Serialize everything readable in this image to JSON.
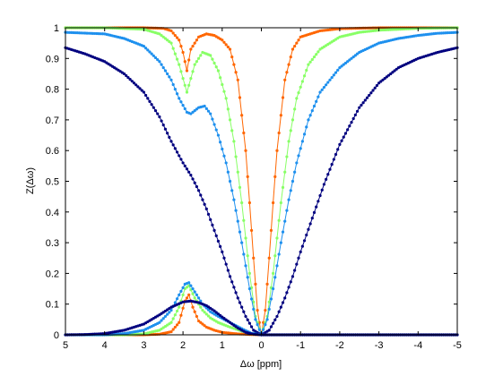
{
  "chart_data": {
    "type": "line",
    "xlabel": "Δω [ppm]",
    "ylabel": "Z(Δω)",
    "xlim": [
      5,
      -5
    ],
    "ylim": [
      0,
      1
    ],
    "x_reversed": true,
    "xticks": [
      5,
      4,
      3,
      2,
      1,
      0,
      -1,
      -2,
      -3,
      -4,
      -5
    ],
    "xtick_labels": [
      "5",
      "4",
      "3",
      "2",
      "1",
      "0",
      "-1",
      "-2",
      "-3",
      "-4",
      "-5"
    ],
    "yticks": [
      0,
      0.1,
      0.2,
      0.3,
      0.4,
      0.5,
      0.6,
      0.7,
      0.8,
      0.9,
      1
    ],
    "ytick_labels": [
      "0",
      "0.1",
      "0.2",
      "0.3",
      "0.4",
      "0.5",
      "0.6",
      "0.7",
      "0.8",
      "0.9",
      "1"
    ],
    "grid": false,
    "marker": "dot",
    "series": [
      {
        "color": "#ff6600",
        "kind": "z_spectrum",
        "values": [
          [
            5,
            1
          ],
          [
            4,
            1
          ],
          [
            3,
            1
          ],
          [
            2.5,
            0.998
          ],
          [
            2.3,
            0.99
          ],
          [
            2.1,
            0.96
          ],
          [
            2,
            0.92
          ],
          [
            1.9,
            0.86
          ],
          [
            1.8,
            0.93
          ],
          [
            1.6,
            0.97
          ],
          [
            1.4,
            0.98
          ],
          [
            1.2,
            0.975
          ],
          [
            1,
            0.96
          ],
          [
            0.8,
            0.93
          ],
          [
            0.6,
            0.83
          ],
          [
            0.4,
            0.6
          ],
          [
            0.3,
            0.43
          ],
          [
            0.2,
            0.25
          ],
          [
            0.1,
            0.08
          ],
          [
            0,
            0
          ],
          [
            -0.1,
            0.08
          ],
          [
            -0.2,
            0.25
          ],
          [
            -0.3,
            0.43
          ],
          [
            -0.4,
            0.6
          ],
          [
            -0.6,
            0.83
          ],
          [
            -0.8,
            0.93
          ],
          [
            -1,
            0.97
          ],
          [
            -1.5,
            0.99
          ],
          [
            -2,
            0.997
          ],
          [
            -3,
            1
          ],
          [
            -5,
            1
          ]
        ]
      },
      {
        "color": "#88ff66",
        "kind": "z_spectrum",
        "values": [
          [
            5,
            1
          ],
          [
            4,
            1
          ],
          [
            3,
            0.995
          ],
          [
            2.6,
            0.98
          ],
          [
            2.3,
            0.95
          ],
          [
            2.1,
            0.88
          ],
          [
            1.9,
            0.79
          ],
          [
            1.7,
            0.88
          ],
          [
            1.5,
            0.92
          ],
          [
            1.3,
            0.91
          ],
          [
            1.1,
            0.86
          ],
          [
            0.9,
            0.77
          ],
          [
            0.7,
            0.63
          ],
          [
            0.5,
            0.43
          ],
          [
            0.3,
            0.2
          ],
          [
            0.15,
            0.06
          ],
          [
            0,
            0
          ],
          [
            -0.15,
            0.06
          ],
          [
            -0.3,
            0.2
          ],
          [
            -0.5,
            0.43
          ],
          [
            -0.7,
            0.63
          ],
          [
            -0.9,
            0.77
          ],
          [
            -1.2,
            0.88
          ],
          [
            -1.5,
            0.93
          ],
          [
            -2,
            0.97
          ],
          [
            -2.5,
            0.985
          ],
          [
            -3,
            0.992
          ],
          [
            -4,
            0.998
          ],
          [
            -5,
            1
          ]
        ]
      },
      {
        "color": "#1e90ee",
        "kind": "z_spectrum",
        "values": [
          [
            5,
            0.985
          ],
          [
            4,
            0.98
          ],
          [
            3.5,
            0.965
          ],
          [
            3,
            0.94
          ],
          [
            2.6,
            0.89
          ],
          [
            2.3,
            0.83
          ],
          [
            2.1,
            0.77
          ],
          [
            1.9,
            0.725
          ],
          [
            1.8,
            0.72
          ],
          [
            1.6,
            0.74
          ],
          [
            1.45,
            0.745
          ],
          [
            1.3,
            0.72
          ],
          [
            1.1,
            0.65
          ],
          [
            0.9,
            0.56
          ],
          [
            0.7,
            0.44
          ],
          [
            0.5,
            0.3
          ],
          [
            0.3,
            0.15
          ],
          [
            0.15,
            0.05
          ],
          [
            0,
            0
          ],
          [
            -0.15,
            0.05
          ],
          [
            -0.3,
            0.15
          ],
          [
            -0.5,
            0.3
          ],
          [
            -0.7,
            0.44
          ],
          [
            -0.9,
            0.56
          ],
          [
            -1.2,
            0.7
          ],
          [
            -1.5,
            0.79
          ],
          [
            -2,
            0.87
          ],
          [
            -2.5,
            0.92
          ],
          [
            -3,
            0.95
          ],
          [
            -3.5,
            0.965
          ],
          [
            -4,
            0.975
          ],
          [
            -4.5,
            0.982
          ],
          [
            -5,
            0.985
          ]
        ]
      },
      {
        "color": "#00007f",
        "kind": "z_spectrum",
        "values": [
          [
            5,
            0.935
          ],
          [
            4.5,
            0.915
          ],
          [
            4,
            0.89
          ],
          [
            3.5,
            0.85
          ],
          [
            3,
            0.79
          ],
          [
            2.6,
            0.71
          ],
          [
            2.3,
            0.63
          ],
          [
            2,
            0.56
          ],
          [
            1.8,
            0.52
          ],
          [
            1.6,
            0.47
          ],
          [
            1.4,
            0.41
          ],
          [
            1.2,
            0.34
          ],
          [
            1,
            0.27
          ],
          [
            0.8,
            0.19
          ],
          [
            0.6,
            0.12
          ],
          [
            0.4,
            0.06
          ],
          [
            0.2,
            0.015
          ],
          [
            0,
            0
          ],
          [
            -0.2,
            0.015
          ],
          [
            -0.4,
            0.06
          ],
          [
            -0.6,
            0.12
          ],
          [
            -0.8,
            0.19
          ],
          [
            -1,
            0.27
          ],
          [
            -1.3,
            0.38
          ],
          [
            -1.6,
            0.49
          ],
          [
            -2,
            0.62
          ],
          [
            -2.5,
            0.74
          ],
          [
            -3,
            0.82
          ],
          [
            -3.5,
            0.87
          ],
          [
            -4,
            0.9
          ],
          [
            -4.5,
            0.92
          ],
          [
            -5,
            0.935
          ]
        ]
      },
      {
        "color": "#ff6600",
        "kind": "asymmetry",
        "values": [
          [
            5,
            0
          ],
          [
            3,
            0
          ],
          [
            2.6,
            0.002
          ],
          [
            2.3,
            0.01
          ],
          [
            2.1,
            0.04
          ],
          [
            1.95,
            0.11
          ],
          [
            1.85,
            0.13
          ],
          [
            1.75,
            0.09
          ],
          [
            1.6,
            0.045
          ],
          [
            1.4,
            0.025
          ],
          [
            1.2,
            0.015
          ],
          [
            1,
            0.008
          ],
          [
            0.6,
            0.003
          ],
          [
            0.3,
            0.001
          ],
          [
            0,
            0
          ],
          [
            -5,
            0
          ]
        ]
      },
      {
        "color": "#88ff66",
        "kind": "asymmetry",
        "values": [
          [
            5,
            0
          ],
          [
            3.5,
            0
          ],
          [
            3,
            0.003
          ],
          [
            2.6,
            0.015
          ],
          [
            2.3,
            0.04
          ],
          [
            2.1,
            0.09
          ],
          [
            1.95,
            0.15
          ],
          [
            1.85,
            0.16
          ],
          [
            1.7,
            0.12
          ],
          [
            1.5,
            0.08
          ],
          [
            1.3,
            0.055
          ],
          [
            1.1,
            0.04
          ],
          [
            0.8,
            0.025
          ],
          [
            0.5,
            0.012
          ],
          [
            0.25,
            0.004
          ],
          [
            0,
            0
          ],
          [
            -5,
            0
          ]
        ]
      },
      {
        "color": "#1e90ee",
        "kind": "asymmetry",
        "values": [
          [
            5,
            0
          ],
          [
            4,
            0
          ],
          [
            3.5,
            0.004
          ],
          [
            3,
            0.015
          ],
          [
            2.6,
            0.04
          ],
          [
            2.3,
            0.08
          ],
          [
            2.1,
            0.13
          ],
          [
            1.95,
            0.165
          ],
          [
            1.85,
            0.17
          ],
          [
            1.7,
            0.14
          ],
          [
            1.5,
            0.1
          ],
          [
            1.3,
            0.075
          ],
          [
            1.1,
            0.06
          ],
          [
            0.8,
            0.04
          ],
          [
            0.5,
            0.02
          ],
          [
            0.25,
            0.005
          ],
          [
            0,
            0
          ],
          [
            -5,
            0
          ]
        ]
      },
      {
        "color": "#00007f",
        "kind": "asymmetry",
        "values": [
          [
            5,
            0
          ],
          [
            4.5,
            0.001
          ],
          [
            4,
            0.004
          ],
          [
            3.5,
            0.015
          ],
          [
            3,
            0.035
          ],
          [
            2.6,
            0.065
          ],
          [
            2.3,
            0.09
          ],
          [
            2,
            0.107
          ],
          [
            1.8,
            0.11
          ],
          [
            1.6,
            0.105
          ],
          [
            1.4,
            0.095
          ],
          [
            1.2,
            0.078
          ],
          [
            1,
            0.058
          ],
          [
            0.8,
            0.04
          ],
          [
            0.6,
            0.022
          ],
          [
            0.4,
            0.008
          ],
          [
            0.2,
            0.002
          ],
          [
            0,
            0
          ],
          [
            -5,
            0
          ]
        ]
      }
    ]
  }
}
